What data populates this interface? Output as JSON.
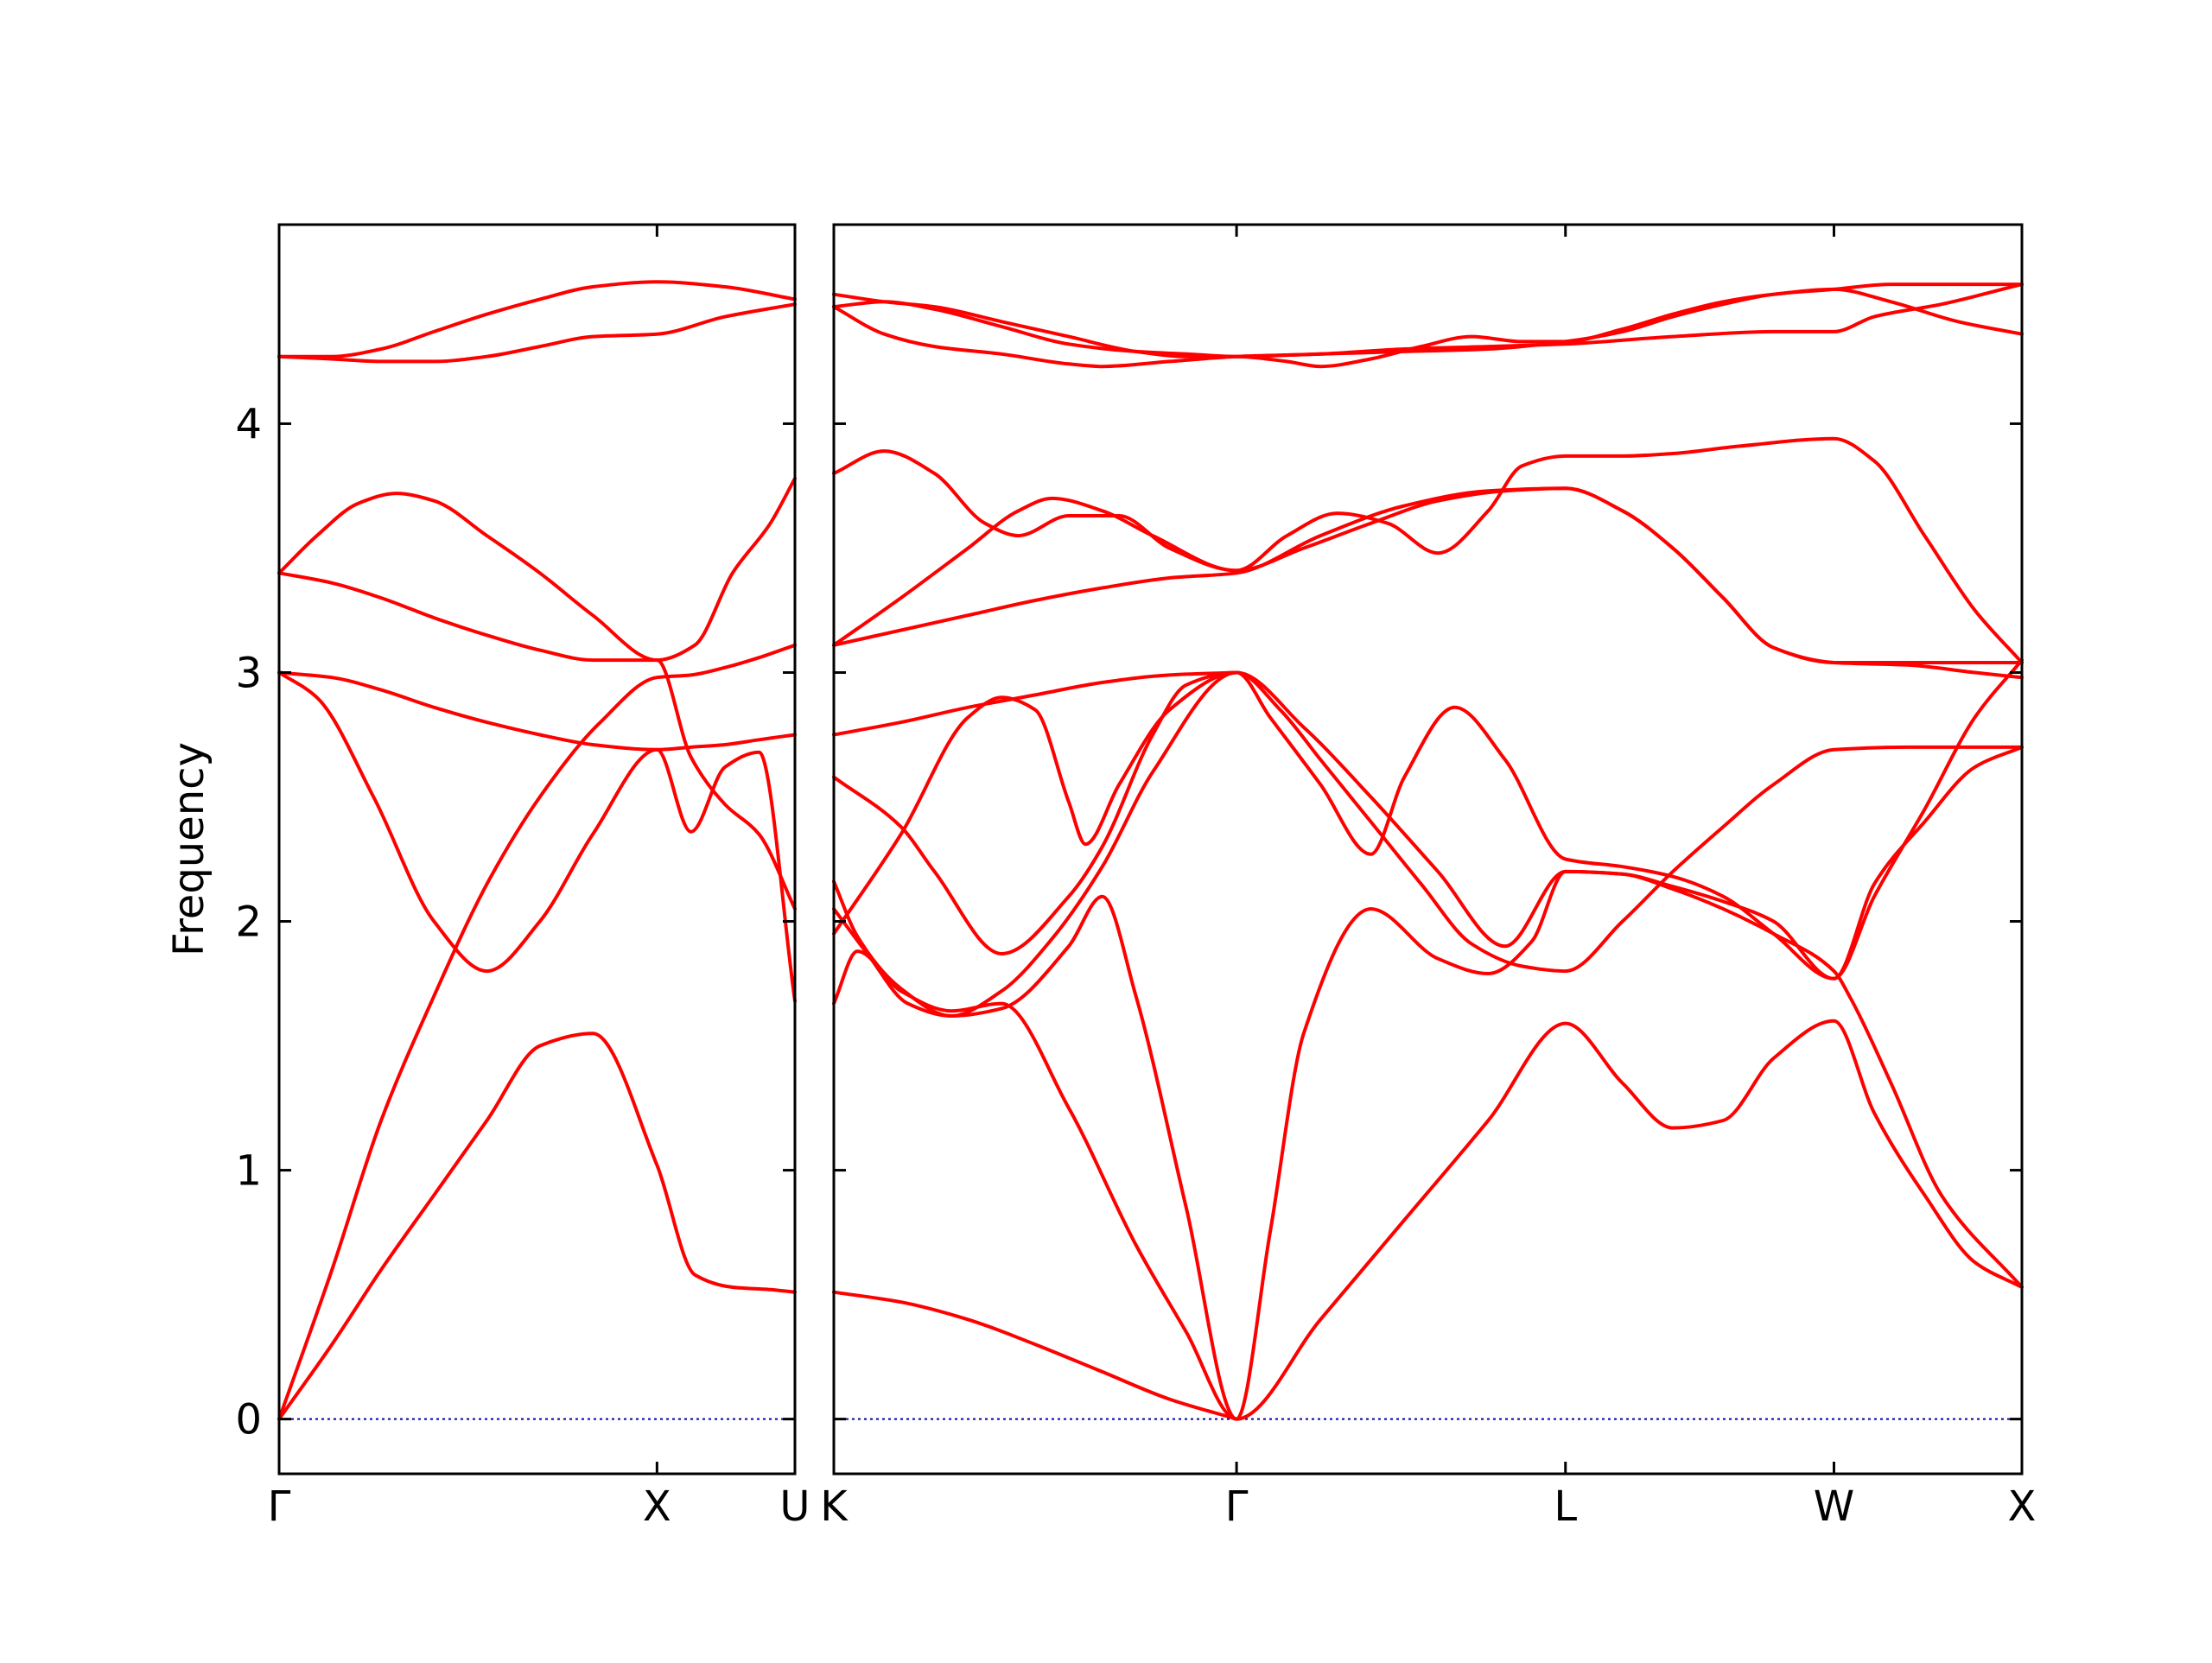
{
  "chart_data": {
    "type": "line",
    "title": "",
    "ylabel": "Frequency",
    "ylim": [
      -0.22,
      4.8
    ],
    "y_ticks": [
      0,
      1,
      2,
      3,
      4
    ],
    "grid": false,
    "colors": {
      "band": "#ff0000",
      "zero_line": "#0000aa",
      "axes": "#000000"
    },
    "panels": [
      {
        "name": "left",
        "xlim": [
          0,
          1.365
        ],
        "x_ticks": [
          {
            "x": 0,
            "label": "Γ"
          },
          {
            "x": 1.0,
            "label": "X"
          },
          {
            "x": 1.365,
            "label": "U"
          }
        ],
        "series": [
          {
            "x": [
              0,
              0.14,
              0.27,
              0.41,
              0.55,
              0.69,
              0.83,
              1.0,
              1.1,
              1.2,
              1.3,
              1.365
            ],
            "y": [
              0,
              0.3,
              0.6,
              0.9,
              1.2,
              1.5,
              1.55,
              1.02,
              0.58,
              0.53,
              0.52,
              0.51
            ]
          },
          {
            "x": [
              0,
              0.14,
              0.27,
              0.41,
              0.55,
              0.69,
              0.85,
              1.0,
              1.09,
              1.18,
              1.27,
              1.365
            ],
            "y": [
              0,
              0.6,
              1.2,
              1.7,
              2.15,
              2.5,
              2.8,
              2.98,
              2.99,
              3.02,
              3.06,
              3.11
            ]
          },
          {
            "x": [
              0,
              0.1,
              0.25,
              0.41,
              0.55,
              0.69,
              0.83,
              1.0,
              1.09,
              1.18,
              1.27,
              1.365
            ],
            "y": [
              3,
              2.9,
              2.5,
              2.0,
              1.8,
              2.0,
              2.35,
              2.69,
              2.36,
              2.62,
              2.68,
              1.68
            ]
          },
          {
            "x": [
              0,
              0.14,
              0.27,
              0.41,
              0.55,
              0.69,
              0.83,
              1.0,
              1.09,
              1.18,
              1.27,
              1.365
            ],
            "y": [
              3,
              2.98,
              2.93,
              2.86,
              2.8,
              2.75,
              2.71,
              2.69,
              2.7,
              2.71,
              2.73,
              2.75
            ]
          },
          {
            "x": [
              0,
              0.14,
              0.27,
              0.41,
              0.55,
              0.69,
              0.83,
              1.0,
              1.09,
              1.18,
              1.27,
              1.365
            ],
            "y": [
              3.4,
              3.36,
              3.3,
              3.22,
              3.15,
              3.09,
              3.05,
              3.05,
              2.66,
              2.47,
              2.35,
              2.05
            ]
          },
          {
            "x": [
              0,
              0.1,
              0.21,
              0.31,
              0.41,
              0.55,
              0.69,
              0.83,
              1.0,
              1.1,
              1.2,
              1.3,
              1.365
            ],
            "y": [
              3.4,
              3.55,
              3.68,
              3.72,
              3.69,
              3.55,
              3.4,
              3.23,
              3.05,
              3.11,
              3.4,
              3.6,
              3.78
            ]
          },
          {
            "x": [
              0,
              0.14,
              0.27,
              0.41,
              0.55,
              0.69,
              0.83,
              1.0,
              1.18,
              1.365
            ],
            "y": [
              4.27,
              4.26,
              4.25,
              4.25,
              4.27,
              4.31,
              4.35,
              4.36,
              4.43,
              4.48
            ]
          },
          {
            "x": [
              0,
              0.14,
              0.27,
              0.41,
              0.55,
              0.69,
              0.83,
              1.0,
              1.18,
              1.365
            ],
            "y": [
              4.27,
              4.27,
              4.3,
              4.37,
              4.44,
              4.5,
              4.55,
              4.57,
              4.55,
              4.5
            ]
          }
        ]
      },
      {
        "name": "right",
        "xlim": [
          0,
          3.54
        ],
        "x_ticks": [
          {
            "x": 0,
            "label": "K"
          },
          {
            "x": 1.2,
            "label": "Γ"
          },
          {
            "x": 2.18,
            "label": "L"
          },
          {
            "x": 2.98,
            "label": "W"
          },
          {
            "x": 3.54,
            "label": "X"
          }
        ],
        "series": [
          {
            "x": [
              0,
              0.2,
              0.4,
              0.6,
              0.8,
              1.0,
              1.2
            ],
            "y": [
              0.51,
              0.47,
              0.4,
              0.3,
              0.19,
              0.08,
              0
            ]
          },
          {
            "x": [
              0,
              0.07,
              0.2,
              0.35,
              0.5,
              0.7,
              0.9,
              1.05,
              1.2,
              1.45,
              1.7,
              1.95,
              2.18,
              2.35,
              2.5,
              2.65,
              2.8,
              2.98,
              3.1,
              3.25,
              3.4,
              3.54
            ],
            "y": [
              1.67,
              1.88,
              1.72,
              1.64,
              1.67,
              1.25,
              0.7,
              0.35,
              0,
              0.4,
              0.8,
              1.2,
              1.59,
              1.35,
              1.17,
              1.2,
              1.45,
              1.6,
              1.23,
              0.9,
              0.63,
              0.53
            ]
          },
          {
            "x": [
              0,
              0.07,
              0.2,
              0.35,
              0.5,
              0.7,
              0.8,
              0.9,
              1.05,
              1.2,
              1.3,
              1.4,
              1.6,
              1.8,
              1.95,
              2.08,
              2.18,
              2.35,
              2.5,
              2.65,
              2.8,
              2.98,
              3.03,
              3.15,
              3.3,
              3.54
            ],
            "y": [
              2.16,
              1.94,
              1.73,
              1.62,
              1.65,
              1.9,
              2.1,
              1.7,
              0.85,
              0,
              0.75,
              1.55,
              2.05,
              1.85,
              1.79,
              1.92,
              2.2,
              2.19,
              2.13,
              2.05,
              1.95,
              1.8,
              1.69,
              1.35,
              0.9,
              0.53
            ]
          },
          {
            "x": [
              0,
              0.1,
              0.22,
              0.35,
              0.5,
              0.65,
              0.8,
              0.95,
              1.2,
              1.33,
              1.45,
              1.6,
              1.75,
              1.9,
              2.05,
              2.18,
              2.35,
              2.5,
              2.65,
              2.8,
              2.98,
              3.2,
              3.4,
              3.54
            ],
            "y": [
              2.05,
              1.87,
              1.67,
              1.62,
              1.72,
              1.93,
              2.22,
              2.6,
              3.0,
              2.85,
              2.65,
              2.4,
              2.15,
              1.91,
              1.82,
              1.8,
              2.0,
              2.2,
              2.38,
              2.55,
              2.69,
              2.7,
              2.7,
              2.7
            ]
          },
          {
            "x": [
              0,
              0.2,
              0.3,
              0.5,
              0.7,
              0.8,
              0.95,
              1.05,
              1.2,
              1.3,
              1.45,
              1.6,
              1.7,
              1.85,
              2.0,
              2.18,
              2.35,
              2.5,
              2.65,
              2.8,
              2.98,
              3.1,
              3.25,
              3.4,
              3.54
            ],
            "y": [
              2.58,
              2.38,
              2.2,
              1.87,
              2.1,
              2.3,
              2.75,
              2.95,
              3.0,
              2.82,
              2.55,
              2.27,
              2.58,
              2.86,
              2.65,
              2.25,
              2.22,
              2.18,
              2.1,
              1.95,
              1.77,
              2.1,
              2.45,
              2.82,
              3.05
            ]
          },
          {
            "x": [
              0,
              0.2,
              0.4,
              0.5,
              0.6,
              0.7,
              0.75,
              0.85,
              1.0,
              1.2,
              1.4,
              1.6,
              1.8,
              2.0,
              2.18,
              2.35,
              2.5,
              2.65,
              2.8,
              2.98,
              3.1,
              3.25,
              3.4,
              3.54
            ],
            "y": [
              1.95,
              2.35,
              2.82,
              2.9,
              2.85,
              2.48,
              2.31,
              2.55,
              2.85,
              3.0,
              2.78,
              2.5,
              2.2,
              1.9,
              2.2,
              2.19,
              2.14,
              2.08,
              2.0,
              1.77,
              2.15,
              2.4,
              2.62,
              2.7
            ]
          },
          {
            "x": [
              0,
              0.2,
              0.4,
              0.6,
              0.8,
              1.0,
              1.2
            ],
            "y": [
              2.75,
              2.8,
              2.86,
              2.91,
              2.96,
              2.99,
              3.0
            ]
          },
          {
            "x": [
              0,
              0.2,
              0.4,
              0.6,
              0.8,
              1.0,
              1.2,
              1.45,
              1.7,
              1.95,
              2.18,
              2.35,
              2.5,
              2.65,
              2.8,
              2.98,
              3.2,
              3.4,
              3.54
            ],
            "y": [
              3.11,
              3.17,
              3.23,
              3.29,
              3.34,
              3.38,
              3.4,
              3.55,
              3.67,
              3.73,
              3.74,
              3.65,
              3.5,
              3.3,
              3.1,
              3.04,
              3.04,
              3.04,
              3.04
            ]
          },
          {
            "x": [
              0,
              0.2,
              0.4,
              0.55,
              0.65,
              0.8,
              0.95,
              1.2,
              1.4,
              1.6,
              1.8,
              2.0,
              2.18,
              2.35,
              2.5,
              2.65,
              2.8,
              2.98,
              3.2,
              3.4,
              3.54
            ],
            "y": [
              3.11,
              3.3,
              3.5,
              3.65,
              3.7,
              3.65,
              3.55,
              3.41,
              3.5,
              3.6,
              3.69,
              3.73,
              3.74,
              3.65,
              3.5,
              3.3,
              3.1,
              3.04,
              3.03,
              3.0,
              2.98
            ]
          },
          {
            "x": [
              0,
              0.15,
              0.3,
              0.45,
              0.55,
              0.7,
              0.85,
              1.0,
              1.2,
              1.35,
              1.5,
              1.65,
              1.8,
              1.95,
              2.05,
              2.18,
              2.35,
              2.5,
              2.7,
              2.98,
              3.1,
              3.25,
              3.4,
              3.54
            ],
            "y": [
              3.8,
              3.89,
              3.8,
              3.6,
              3.55,
              3.63,
              3.63,
              3.5,
              3.41,
              3.55,
              3.64,
              3.6,
              3.48,
              3.65,
              3.83,
              3.87,
              3.87,
              3.88,
              3.91,
              3.94,
              3.85,
              3.55,
              3.25,
              3.04
            ]
          },
          {
            "x": [
              0,
              0.15,
              0.3,
              0.5,
              0.7,
              0.8,
              1.0,
              1.2,
              1.45,
              1.7,
              1.95,
              2.18,
              2.5,
              2.8,
              2.98,
              3.1,
              3.3,
              3.54
            ],
            "y": [
              4.47,
              4.36,
              4.31,
              4.28,
              4.24,
              4.23,
              4.25,
              4.27,
              4.28,
              4.3,
              4.31,
              4.32,
              4.35,
              4.37,
              4.37,
              4.43,
              4.48,
              4.56
            ]
          },
          {
            "x": [
              0,
              0.15,
              0.3,
              0.5,
              0.7,
              0.9,
              1.05,
              1.2,
              1.35,
              1.45,
              1.6,
              1.75,
              1.9,
              2.05,
              2.18,
              2.35,
              2.5,
              2.65,
              2.8,
              2.98,
              3.15,
              3.35,
              3.54
            ],
            "y": [
              4.52,
              4.49,
              4.47,
              4.41,
              4.35,
              4.29,
              4.27,
              4.27,
              4.25,
              4.23,
              4.26,
              4.31,
              4.35,
              4.33,
              4.33,
              4.38,
              4.44,
              4.49,
              4.52,
              4.54,
              4.49,
              4.41,
              4.36
            ]
          },
          {
            "x": [
              0,
              0.15,
              0.3,
              0.5,
              0.7,
              0.9,
              1.05,
              1.2,
              1.45,
              1.7,
              1.95,
              2.18,
              2.35,
              2.5,
              2.65,
              2.8,
              2.98,
              3.15,
              3.35,
              3.54
            ],
            "y": [
              4.47,
              4.49,
              4.46,
              4.39,
              4.32,
              4.29,
              4.28,
              4.27,
              4.28,
              4.29,
              4.3,
              4.33,
              4.37,
              4.43,
              4.48,
              4.52,
              4.54,
              4.56,
              4.56,
              4.56
            ]
          }
        ]
      }
    ]
  }
}
